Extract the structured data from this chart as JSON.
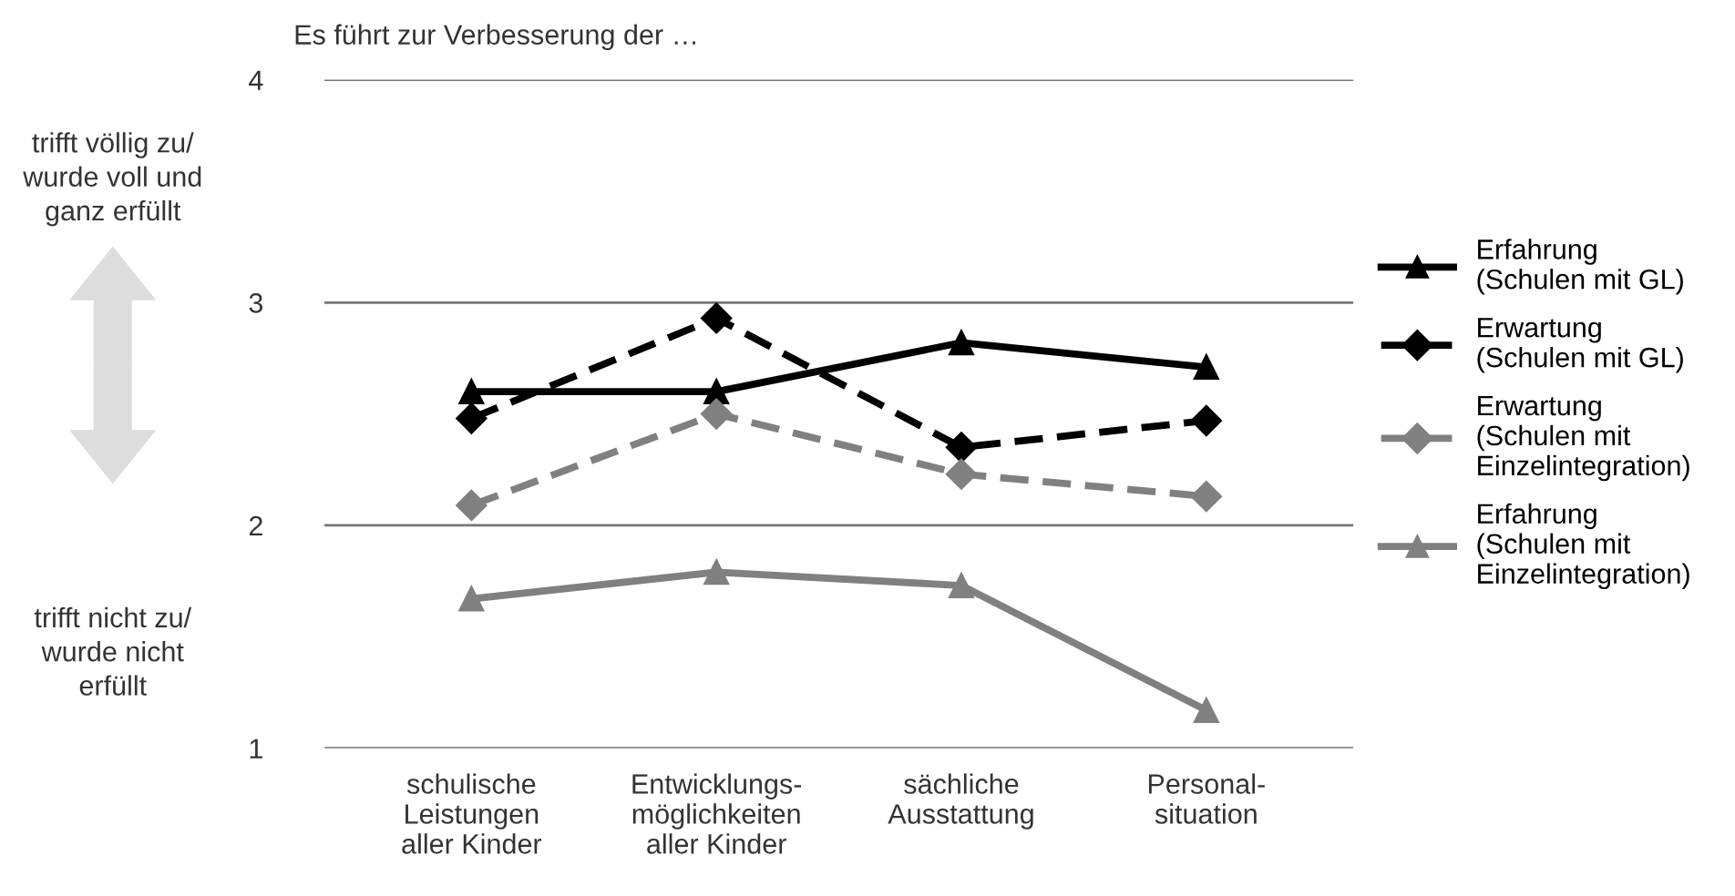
{
  "chart_data": {
    "type": "line",
    "title": "Es führt zur Verbesserung der …",
    "categories": [
      "schulische\nLeistungen\naller Kinder",
      "Entwicklungs-\nmöglichkeiten\naller Kinder",
      "sächliche\nAusstattung",
      "Personal-\nsituation"
    ],
    "series": [
      {
        "name": "Erfahrung\n(Schulen mit GL)",
        "color": "#000000",
        "marker": "triangle",
        "line_style": "solid",
        "values": [
          2.6,
          2.6,
          2.82,
          2.71
        ]
      },
      {
        "name": "Erwartung\n(Schulen mit GL)",
        "color": "#000000",
        "marker": "diamond",
        "line_style": "dashed",
        "values": [
          2.48,
          2.93,
          2.35,
          2.47
        ]
      },
      {
        "name": "Erwartung\n(Schulen mit\nEinzelintegration)",
        "color": "#808080",
        "marker": "diamond",
        "line_style": "dashed",
        "values": [
          2.09,
          2.5,
          2.23,
          2.13
        ]
      },
      {
        "name": "Erfahrung\n(Schulen mit\nEinzelintegration)",
        "color": "#808080",
        "marker": "triangle",
        "line_style": "solid",
        "values": [
          1.67,
          1.79,
          1.73,
          1.17
        ]
      }
    ],
    "ylim": [
      1,
      4
    ],
    "yticks": [
      1,
      2,
      3,
      4
    ],
    "grid": "y",
    "legend": "right",
    "annotations": [
      "trifft völlig zu/\nwurde voll und\nganz erfüllt",
      "trifft nicht zu/\nwurde nicht\nerfüllt"
    ]
  }
}
